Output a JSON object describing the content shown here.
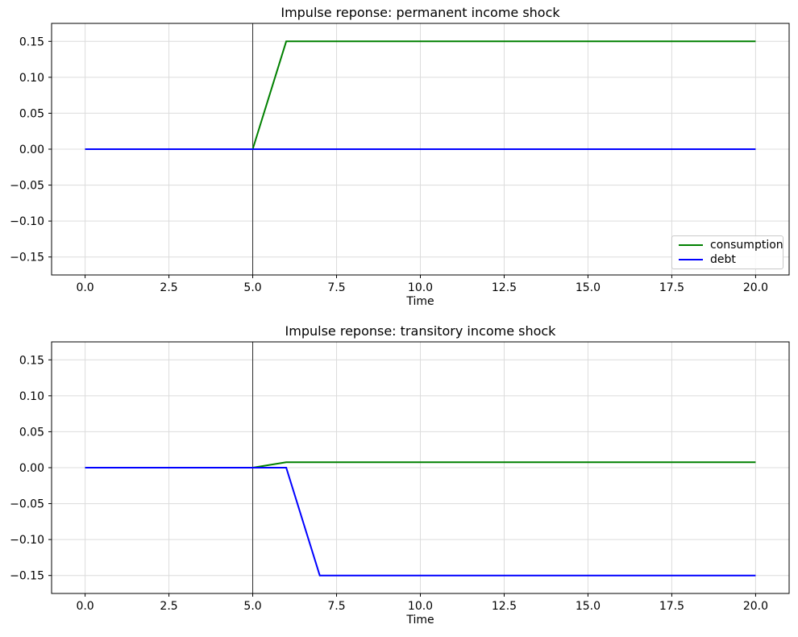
{
  "figure": {
    "background": "#ffffff"
  },
  "colors": {
    "consumption": "#008000",
    "debt": "#0000ff",
    "vline": "#2e2e2e",
    "grid": "#dcdcdc",
    "axis": "#000000",
    "text": "#000000",
    "legend_border": "#c9c9c9"
  },
  "chart_data": [
    {
      "type": "line",
      "title": "Impulse reponse: permanent income shock",
      "xlabel": "Time",
      "ylabel": "",
      "x": [
        0,
        1,
        2,
        3,
        4,
        5,
        6,
        7,
        8,
        9,
        10,
        11,
        12,
        13,
        14,
        15,
        16,
        17,
        18,
        19,
        20
      ],
      "series": [
        {
          "name": "consumption",
          "color": "#008000",
          "values": [
            0,
            0,
            0,
            0,
            0,
            0,
            0.15,
            0.15,
            0.15,
            0.15,
            0.15,
            0.15,
            0.15,
            0.15,
            0.15,
            0.15,
            0.15,
            0.15,
            0.15,
            0.15,
            0.15
          ]
        },
        {
          "name": "debt",
          "color": "#0000ff",
          "values": [
            0,
            0,
            0,
            0,
            0,
            0,
            0,
            0,
            0,
            0,
            0,
            0,
            0,
            0,
            0,
            0,
            0,
            0,
            0,
            0,
            0
          ]
        }
      ],
      "xlim": [
        -1,
        21
      ],
      "ylim": [
        -0.175,
        0.175
      ],
      "xticks": [
        0,
        2.5,
        5,
        7.5,
        10,
        12.5,
        15,
        17.5,
        20
      ],
      "xtick_labels": [
        "0.0",
        "2.5",
        "5.0",
        "7.5",
        "10.0",
        "12.5",
        "15.0",
        "17.5",
        "20.0"
      ],
      "yticks": [
        0.15,
        0.1,
        0.05,
        0,
        -0.05,
        -0.1,
        -0.15
      ],
      "ytick_labels": [
        "0.15",
        "0.10",
        "0.05",
        "0.00",
        "−0.05",
        "−0.10",
        "−0.15"
      ],
      "vline_x": 5,
      "grid": true,
      "legend": {
        "visible": true,
        "position": "lower right",
        "entries": [
          "consumption",
          "debt"
        ]
      }
    },
    {
      "type": "line",
      "title": "Impulse reponse: transitory income shock",
      "xlabel": "Time",
      "ylabel": "",
      "x": [
        0,
        1,
        2,
        3,
        4,
        5,
        6,
        7,
        8,
        9,
        10,
        11,
        12,
        13,
        14,
        15,
        16,
        17,
        18,
        19,
        20
      ],
      "series": [
        {
          "name": "consumption",
          "color": "#008000",
          "values": [
            0,
            0,
            0,
            0,
            0,
            0,
            0.0075,
            0.0075,
            0.0075,
            0.0075,
            0.0075,
            0.0075,
            0.0075,
            0.0075,
            0.0075,
            0.0075,
            0.0075,
            0.0075,
            0.0075,
            0.0075,
            0.0075
          ]
        },
        {
          "name": "debt",
          "color": "#0000ff",
          "values": [
            0,
            0,
            0,
            0,
            0,
            0,
            0,
            -0.15,
            -0.15,
            -0.15,
            -0.15,
            -0.15,
            -0.15,
            -0.15,
            -0.15,
            -0.15,
            -0.15,
            -0.15,
            -0.15,
            -0.15,
            -0.15
          ]
        }
      ],
      "xlim": [
        -1,
        21
      ],
      "ylim": [
        -0.175,
        0.175
      ],
      "xticks": [
        0,
        2.5,
        5,
        7.5,
        10,
        12.5,
        15,
        17.5,
        20
      ],
      "xtick_labels": [
        "0.0",
        "2.5",
        "5.0",
        "7.5",
        "10.0",
        "12.5",
        "15.0",
        "17.5",
        "20.0"
      ],
      "yticks": [
        0.15,
        0.1,
        0.05,
        0,
        -0.05,
        -0.1,
        -0.15
      ],
      "ytick_labels": [
        "0.15",
        "0.10",
        "0.05",
        "0.00",
        "−0.05",
        "−0.10",
        "−0.15"
      ],
      "vline_x": 5,
      "grid": true,
      "legend": {
        "visible": false,
        "position": null,
        "entries": []
      }
    }
  ]
}
